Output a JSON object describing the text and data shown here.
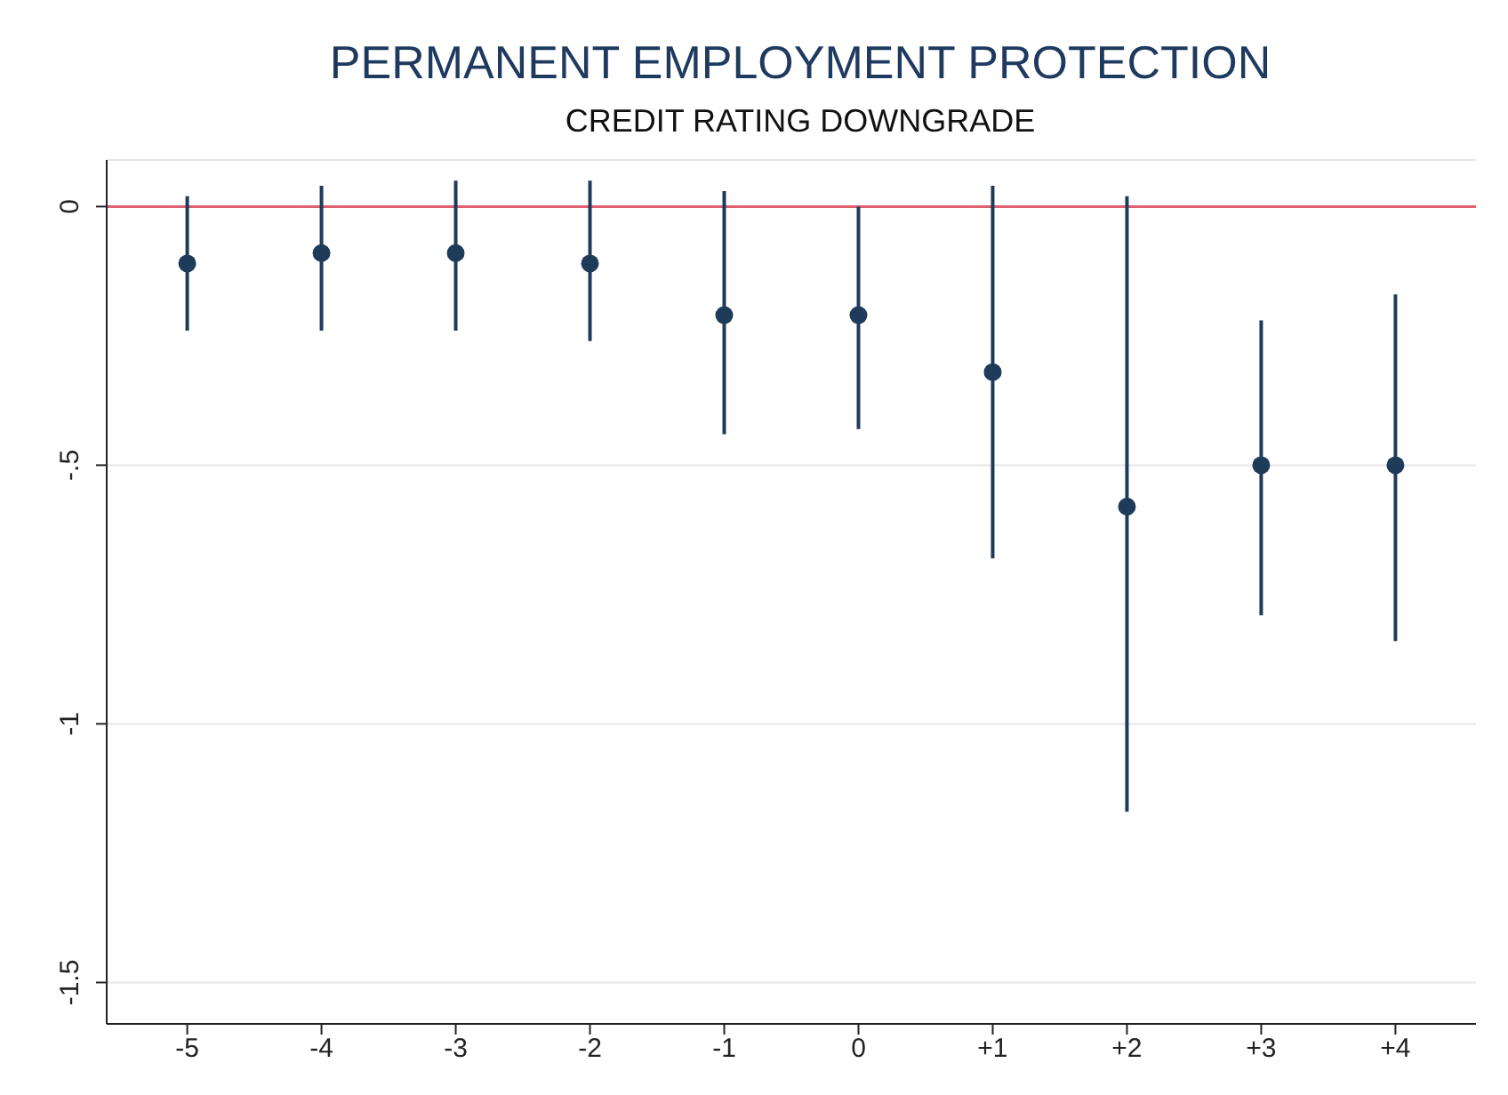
{
  "chart_data": {
    "type": "scatter",
    "title": "PERMANENT EMPLOYMENT PROTECTION",
    "subtitle": "CREDIT RATING DOWNGRADE",
    "categories": [
      "-5",
      "-4",
      "-3",
      "-2",
      "-1",
      "0",
      "+1",
      "+2",
      "+3",
      "+4"
    ],
    "values": [
      -0.11,
      -0.09,
      -0.09,
      -0.11,
      -0.21,
      -0.21,
      -0.32,
      -0.58,
      -0.5,
      -0.5
    ],
    "errors": [
      [
        -0.24,
        0.02
      ],
      [
        -0.24,
        0.04
      ],
      [
        -0.24,
        0.05
      ],
      [
        -0.26,
        0.05
      ],
      [
        -0.44,
        0.03
      ],
      [
        -0.43,
        0
      ],
      [
        -0.68,
        0.04
      ],
      [
        -1.17,
        0.02
      ],
      [
        -0.79,
        -0.22
      ],
      [
        -0.84,
        -0.17
      ]
    ],
    "color": "#1f3b5a",
    "marker": "circle",
    "ylim": [
      -1.58,
      0.09
    ],
    "yticks": [
      {
        "value": 0,
        "label": "0"
      },
      {
        "value": -0.5,
        "label": "-.5"
      },
      {
        "value": -1,
        "label": "-1"
      },
      {
        "value": -1.5,
        "label": "-1.5"
      }
    ],
    "grid": "y",
    "ref_lines": [
      {
        "axis": "y",
        "value": 0,
        "color": "#e06070"
      }
    ]
  }
}
